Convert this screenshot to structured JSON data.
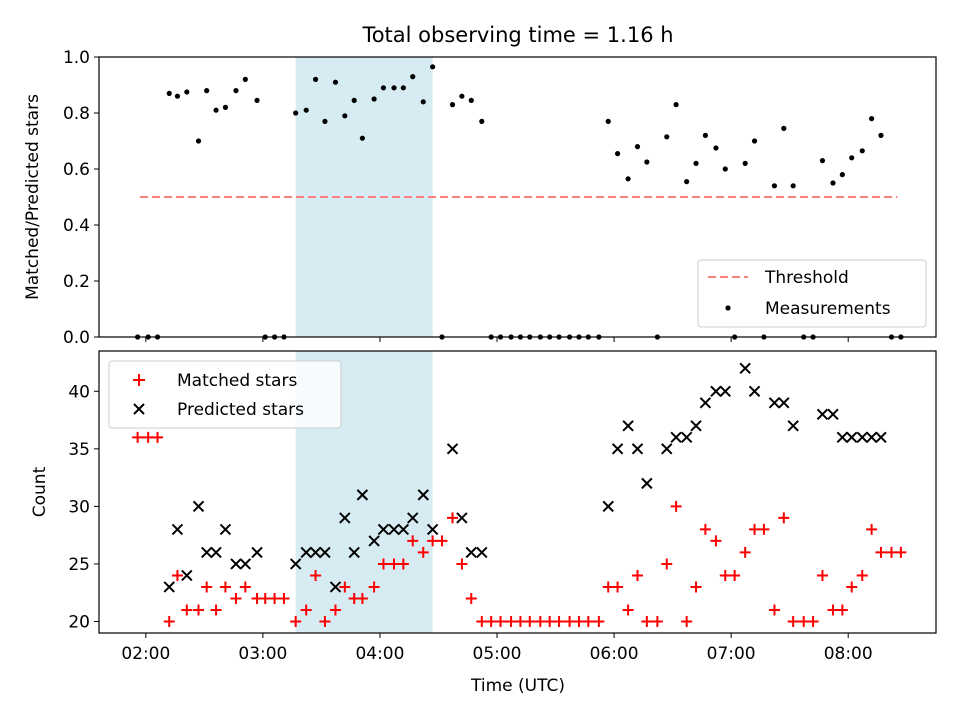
{
  "title": "Total observing time = 1.16 h",
  "colors": {
    "threshold": "#ff7f7f",
    "measurement": "#000000",
    "matched": "#ff0000",
    "predicted": "#000000",
    "span": "#add8e6"
  },
  "chart_data": [
    {
      "type": "scatter",
      "panel": "top",
      "ylabel": "Matched/Predicted stars",
      "xlabel": "",
      "ylim": [
        0.0,
        1.0
      ],
      "yticks": [
        0.0,
        0.2,
        0.4,
        0.6,
        0.8,
        1.0
      ],
      "ytick_labels": [
        "0.0",
        "0.2",
        "0.4",
        "0.6",
        "0.8",
        "1.0"
      ],
      "xlim_hours": [
        1.6,
        8.75
      ],
      "shaded_interval_hours": [
        3.28,
        4.45
      ],
      "legend": {
        "position": "lower-right",
        "entries": [
          "Threshold",
          "Measurements"
        ]
      },
      "series": [
        {
          "name": "Threshold",
          "style": "dashed-line",
          "color": "#ff7f7f",
          "x": [
            1.95,
            8.42
          ],
          "y": [
            0.5,
            0.5
          ]
        },
        {
          "name": "Measurements",
          "style": "dot",
          "color": "#000000",
          "x": [
            1.93,
            2.02,
            2.1,
            2.2,
            2.27,
            2.35,
            2.45,
            2.52,
            2.6,
            2.68,
            2.77,
            2.85,
            2.95,
            3.02,
            3.1,
            3.18,
            3.28,
            3.37,
            3.45,
            3.53,
            3.62,
            3.7,
            3.78,
            3.85,
            3.95,
            4.03,
            4.12,
            4.2,
            4.28,
            4.37,
            4.45,
            4.53,
            4.62,
            4.7,
            4.78,
            4.87,
            4.95,
            5.03,
            5.12,
            5.2,
            5.28,
            5.37,
            5.45,
            5.53,
            5.62,
            5.7,
            5.78,
            5.87,
            5.95,
            6.03,
            6.12,
            6.2,
            6.28,
            6.37,
            6.45,
            6.53,
            6.62,
            6.7,
            6.78,
            6.87,
            6.95,
            7.03,
            7.12,
            7.2,
            7.28,
            7.37,
            7.45,
            7.53,
            7.62,
            7.7,
            7.78,
            7.87,
            7.95,
            8.03,
            8.12,
            8.2,
            8.28,
            8.37,
            8.45
          ],
          "y": [
            0.0,
            0.0,
            0.0,
            0.87,
            0.86,
            0.875,
            0.7,
            0.88,
            0.81,
            0.82,
            0.88,
            0.92,
            0.845,
            0.0,
            0.0,
            0.0,
            0.8,
            0.81,
            0.92,
            0.77,
            0.91,
            0.79,
            0.845,
            0.71,
            0.85,
            0.89,
            0.89,
            0.89,
            0.93,
            0.84,
            0.965,
            0.0,
            0.83,
            0.86,
            0.845,
            0.77,
            0.0,
            0.0,
            0.0,
            0.0,
            0.0,
            0.0,
            0.0,
            0.0,
            0.0,
            0.0,
            0.0,
            0.0,
            0.77,
            0.655,
            0.565,
            0.68,
            0.625,
            0.0,
            0.715,
            0.83,
            0.555,
            0.62,
            0.72,
            0.675,
            0.6,
            0.0,
            0.62,
            0.7,
            0.0,
            0.54,
            0.745,
            0.54,
            0.0,
            0.0,
            0.63,
            0.55,
            0.58,
            0.64,
            0.665,
            0.78,
            0.72,
            0.0,
            0.0
          ]
        }
      ]
    },
    {
      "type": "scatter",
      "panel": "bottom",
      "ylabel": "Count",
      "xlabel": "Time (UTC)",
      "ylim": [
        19,
        43.5
      ],
      "yticks": [
        20,
        25,
        30,
        35,
        40
      ],
      "ytick_labels": [
        "20",
        "25",
        "30",
        "35",
        "40"
      ],
      "xlim_hours": [
        1.6,
        8.75
      ],
      "xticks_hours": [
        2,
        3,
        4,
        5,
        6,
        7,
        8
      ],
      "xtick_labels": [
        "02:00",
        "03:00",
        "04:00",
        "05:00",
        "06:00",
        "07:00",
        "08:00"
      ],
      "shaded_interval_hours": [
        3.28,
        4.45
      ],
      "legend": {
        "position": "upper-left",
        "entries": [
          "Matched stars",
          "Predicted stars"
        ]
      },
      "series": [
        {
          "name": "Matched stars",
          "marker": "+",
          "color": "#ff0000",
          "x": [
            1.93,
            2.02,
            2.1,
            2.2,
            2.27,
            2.35,
            2.45,
            2.52,
            2.6,
            2.68,
            2.77,
            2.85,
            2.95,
            3.02,
            3.1,
            3.18,
            3.28,
            3.37,
            3.45,
            3.53,
            3.62,
            3.7,
            3.78,
            3.85,
            3.95,
            4.03,
            4.12,
            4.2,
            4.28,
            4.37,
            4.45,
            4.53,
            4.62,
            4.7,
            4.78,
            4.87,
            4.95,
            5.03,
            5.12,
            5.2,
            5.28,
            5.37,
            5.45,
            5.53,
            5.62,
            5.7,
            5.78,
            5.87,
            5.95,
            6.03,
            6.12,
            6.2,
            6.28,
            6.37,
            6.45,
            6.53,
            6.62,
            6.7,
            6.78,
            6.87,
            6.95,
            7.03,
            7.12,
            7.2,
            7.28,
            7.37,
            7.45,
            7.53,
            7.62,
            7.7,
            7.78,
            7.87,
            7.95,
            8.03,
            8.12,
            8.2,
            8.28,
            8.37,
            8.45
          ],
          "y": [
            36,
            36,
            36,
            20,
            24,
            21,
            21,
            23,
            21,
            23,
            22,
            23,
            22,
            22,
            22,
            22,
            20,
            21,
            24,
            20,
            21,
            23,
            22,
            22,
            23,
            25,
            25,
            25,
            27,
            26,
            27,
            27,
            29,
            25,
            22,
            20,
            20,
            20,
            20,
            20,
            20,
            20,
            20,
            20,
            20,
            20,
            20,
            20,
            23,
            23,
            21,
            24,
            20,
            20,
            25,
            30,
            20,
            23,
            28,
            27,
            24,
            24,
            26,
            28,
            28,
            21,
            29,
            20,
            20,
            20,
            24,
            21,
            21,
            23,
            24,
            28,
            26,
            26,
            26
          ]
        },
        {
          "name": "Predicted stars",
          "marker": "x",
          "color": "#000000",
          "x": [
            2.2,
            2.27,
            2.35,
            2.45,
            2.52,
            2.6,
            2.68,
            2.77,
            2.85,
            2.95,
            3.28,
            3.37,
            3.45,
            3.53,
            3.62,
            3.7,
            3.78,
            3.85,
            3.95,
            4.03,
            4.12,
            4.2,
            4.28,
            4.37,
            4.45,
            4.62,
            4.7,
            4.78,
            4.87,
            5.95,
            6.03,
            6.12,
            6.2,
            6.28,
            6.45,
            6.53,
            6.62,
            6.7,
            6.78,
            6.87,
            6.95,
            7.12,
            7.2,
            7.37,
            7.45,
            7.53,
            7.78,
            7.87,
            7.95,
            8.03,
            8.12,
            8.2,
            8.28
          ],
          "y": [
            23,
            28,
            24,
            30,
            26,
            26,
            28,
            25,
            25,
            26,
            25,
            26,
            26,
            26,
            23,
            29,
            26,
            31,
            27,
            28,
            28,
            28,
            29,
            31,
            28,
            35,
            29,
            26,
            26,
            30,
            35,
            37,
            35,
            32,
            35,
            36,
            36,
            37,
            39,
            40,
            40,
            42,
            40,
            39,
            39,
            37,
            38,
            38,
            36,
            36,
            36,
            36,
            36
          ]
        }
      ]
    }
  ]
}
